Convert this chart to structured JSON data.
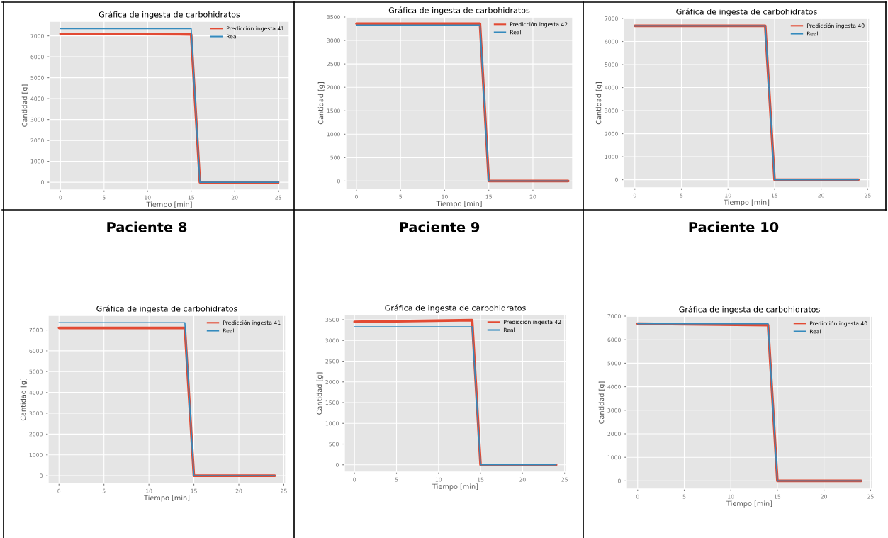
{
  "chart_data": [
    {
      "type": "line",
      "title": "Gráfica de ingesta de carbohidratos",
      "xlabel": "Tiempo [min]",
      "ylabel": "Cantidad [g]",
      "xlim": [
        -1.25,
        26.25
      ],
      "xticks": [
        0,
        5,
        10,
        15,
        20,
        25
      ],
      "ylim": [
        -370,
        7700
      ],
      "yticks": [
        0,
        1000,
        2000,
        3000,
        4000,
        5000,
        6000,
        7000
      ],
      "grid": true,
      "legend": "top right",
      "series": [
        {
          "name": "Predicción ingesta 41",
          "color": "#e24a33",
          "x": [
            0,
            15,
            16,
            25
          ],
          "values": [
            7100,
            7070,
            0,
            0
          ]
        },
        {
          "name": "Real",
          "color": "#348abd",
          "x": [
            0,
            15,
            16,
            25
          ],
          "values": [
            7350,
            7350,
            0,
            0
          ]
        }
      ]
    },
    {
      "type": "line",
      "title": "Gráfica de ingesta de carbohidratos",
      "xlabel": "Tiempo [min]",
      "ylabel": "Cantidad [g]",
      "xlim": [
        -1.2,
        24.5
      ],
      "xticks": [
        0,
        5,
        10,
        15,
        20
      ],
      "ylim": [
        -175,
        3500
      ],
      "yticks": [
        0,
        500,
        1000,
        1500,
        2000,
        2500,
        3000,
        3500
      ],
      "grid": true,
      "legend": "top right",
      "series": [
        {
          "name": "Predicción ingesta 42",
          "color": "#e24a33",
          "x": [
            0,
            14,
            15,
            24
          ],
          "values": [
            3360,
            3360,
            0,
            0
          ]
        },
        {
          "name": "Real",
          "color": "#348abd",
          "x": [
            0,
            14,
            15,
            24
          ],
          "values": [
            3330,
            3330,
            0,
            0
          ]
        }
      ]
    },
    {
      "type": "line",
      "title": "Gráfica de ingesta de carbohidratos",
      "xlabel": "Tiempo [min]",
      "ylabel": "Cantidad [g]",
      "xlim": [
        -1.2,
        25.2
      ],
      "xticks": [
        0,
        5,
        10,
        15,
        20,
        25
      ],
      "ylim": [
        -350,
        7000
      ],
      "yticks": [
        0,
        1000,
        2000,
        3000,
        4000,
        5000,
        6000,
        7000
      ],
      "grid": true,
      "legend": "top right",
      "series": [
        {
          "name": "Predicción ingesta 40",
          "color": "#e24a33",
          "x": [
            0,
            14,
            15,
            24
          ],
          "values": [
            6680,
            6680,
            0,
            0
          ]
        },
        {
          "name": "Real",
          "color": "#348abd",
          "x": [
            0,
            14,
            15,
            24
          ],
          "values": [
            6680,
            6680,
            0,
            0
          ]
        }
      ]
    },
    {
      "type": "line",
      "subtitle": "Paciente 8",
      "title": "Gráfica de ingesta de carbohidratos",
      "xlabel": "Tiempo [min]",
      "ylabel": "Cantidad [g]",
      "xlim": [
        -1.2,
        25.2
      ],
      "xticks": [
        0,
        5,
        10,
        15,
        20,
        25
      ],
      "ylim": [
        -370,
        7700
      ],
      "yticks": [
        0,
        1000,
        2000,
        3000,
        4000,
        5000,
        6000,
        7000
      ],
      "grid": true,
      "legend": "top right",
      "series": [
        {
          "name": "Predicción ingesta 41",
          "color": "#e24a33",
          "x": [
            0,
            14,
            15,
            24
          ],
          "values": [
            7100,
            7100,
            0,
            0
          ]
        },
        {
          "name": "Real",
          "color": "#348abd",
          "x": [
            0,
            14,
            15,
            24
          ],
          "values": [
            7350,
            7350,
            0,
            0
          ]
        }
      ]
    },
    {
      "type": "line",
      "subtitle": "Paciente 9",
      "title": "Gráfica de ingesta de carbohidratos",
      "xlabel": "Tiempo [min]",
      "ylabel": "Cantidad [g]",
      "xlim": [
        -1.2,
        25.2
      ],
      "xticks": [
        0,
        5,
        10,
        15,
        20,
        25
      ],
      "ylim": [
        -175,
        3620
      ],
      "yticks": [
        0,
        500,
        1000,
        1500,
        2000,
        2500,
        3000,
        3500
      ],
      "grid": true,
      "legend": "top right",
      "series": [
        {
          "name": "Predicción ingesta 42",
          "color": "#e24a33",
          "x": [
            0,
            14,
            15,
            24
          ],
          "values": [
            3450,
            3490,
            0,
            0
          ]
        },
        {
          "name": "Real",
          "color": "#348abd",
          "x": [
            0,
            14,
            15,
            24
          ],
          "values": [
            3330,
            3330,
            0,
            0
          ]
        }
      ]
    },
    {
      "type": "line",
      "subtitle": "Paciente 10",
      "title": "Gráfica de ingesta de carbohidratos",
      "xlabel": "Tiempo [min]",
      "ylabel": "Cantidad [g]",
      "xlim": [
        -1.2,
        25.2
      ],
      "xticks": [
        0,
        5,
        10,
        15,
        20,
        25
      ],
      "ylim": [
        -350,
        7000
      ],
      "yticks": [
        0,
        1000,
        2000,
        3000,
        4000,
        5000,
        6000,
        7000
      ],
      "grid": true,
      "legend": "top right",
      "series": [
        {
          "name": "Predicción ingesta 40",
          "color": "#e24a33",
          "x": [
            0,
            14,
            15,
            24
          ],
          "values": [
            6680,
            6620,
            0,
            0
          ]
        },
        {
          "name": "Real",
          "color": "#348abd",
          "x": [
            0,
            14,
            15,
            24
          ],
          "values": [
            6680,
            6680,
            0,
            0
          ]
        }
      ]
    }
  ]
}
